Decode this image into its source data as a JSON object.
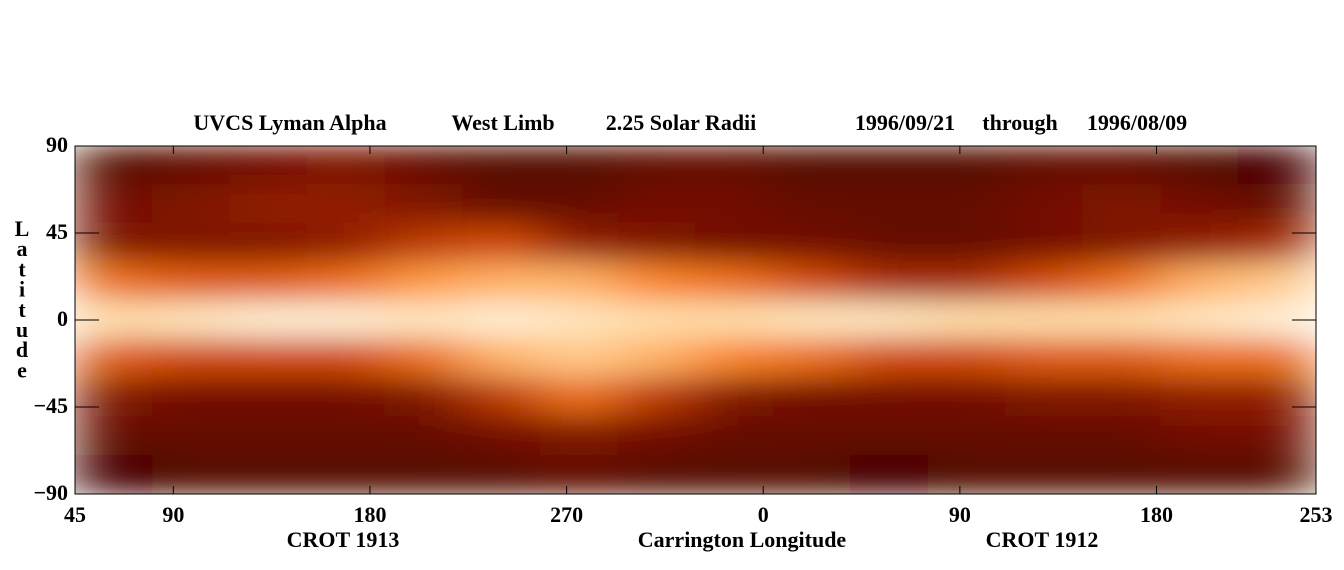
{
  "chart_data": {
    "type": "heatmap",
    "title_parts": [
      "UVCS Lyman Alpha",
      "West Limb",
      "2.25 Solar Radii",
      "1996/09/21",
      "through",
      "1996/08/09"
    ],
    "ylabel": "Latitude",
    "xlabel": "Carrington Longitude",
    "rotation_labels": [
      "CROT 1913",
      "CROT 1912"
    ],
    "xlim": [
      45,
      613
    ],
    "xticks": [
      45,
      90,
      180,
      270,
      {
        "value": 360,
        "label": "0"
      },
      {
        "value": 450,
        "label": "90"
      },
      {
        "value": 540,
        "label": "180"
      },
      {
        "value": 613,
        "label": "253"
      }
    ],
    "ylim": [
      -90,
      90
    ],
    "yticks": [
      90,
      45,
      0,
      {
        "value": -45,
        "label": "−45"
      },
      {
        "value": -90,
        "label": "−90"
      }
    ],
    "x": [
      62.75,
      98.25,
      133.75,
      169.25,
      204.75,
      240.25,
      275.75,
      311.25,
      346.75,
      382.25,
      417.75,
      453.25,
      488.75,
      524.25,
      559.75,
      595.25
    ],
    "y": [
      80,
      60,
      40,
      20,
      0,
      -20,
      -40,
      -60,
      -80
    ],
    "z": [
      [
        0.15,
        0.2,
        0.25,
        0.3,
        0.2,
        0.15,
        0.15,
        0.2,
        0.2,
        0.15,
        0.15,
        0.15,
        0.2,
        0.2,
        0.15,
        0.1
      ],
      [
        0.25,
        0.3,
        0.35,
        0.35,
        0.3,
        0.2,
        0.2,
        0.25,
        0.25,
        0.2,
        0.2,
        0.2,
        0.25,
        0.3,
        0.25,
        0.2
      ],
      [
        0.3,
        0.3,
        0.3,
        0.35,
        0.45,
        0.5,
        0.35,
        0.3,
        0.25,
        0.25,
        0.2,
        0.2,
        0.25,
        0.3,
        0.35,
        0.4
      ],
      [
        0.6,
        0.55,
        0.55,
        0.6,
        0.7,
        0.75,
        0.75,
        0.65,
        0.6,
        0.5,
        0.4,
        0.4,
        0.5,
        0.6,
        0.75,
        0.8
      ],
      [
        0.85,
        0.9,
        0.95,
        0.95,
        0.9,
        0.95,
        0.9,
        0.85,
        0.85,
        0.9,
        0.9,
        0.85,
        0.85,
        0.85,
        0.9,
        0.95
      ],
      [
        0.55,
        0.5,
        0.5,
        0.5,
        0.6,
        0.75,
        0.8,
        0.75,
        0.65,
        0.6,
        0.5,
        0.5,
        0.55,
        0.55,
        0.6,
        0.6
      ],
      [
        0.3,
        0.25,
        0.25,
        0.25,
        0.3,
        0.45,
        0.6,
        0.45,
        0.3,
        0.25,
        0.25,
        0.25,
        0.3,
        0.3,
        0.35,
        0.35
      ],
      [
        0.2,
        0.2,
        0.2,
        0.2,
        0.2,
        0.25,
        0.3,
        0.25,
        0.2,
        0.2,
        0.2,
        0.2,
        0.2,
        0.2,
        0.25,
        0.25
      ],
      [
        0.1,
        0.15,
        0.15,
        0.15,
        0.15,
        0.15,
        0.2,
        0.15,
        0.15,
        0.15,
        0.1,
        0.15,
        0.15,
        0.15,
        0.15,
        0.15
      ]
    ],
    "colormap": [
      "#200000",
      "#5a0800",
      "#8a1a00",
      "#d04800",
      "#ff8a2a",
      "#ffd8a0",
      "#fff6e6"
    ]
  }
}
